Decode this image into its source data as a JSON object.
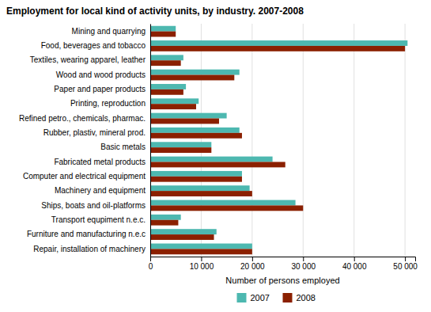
{
  "chart_data": {
    "type": "bar",
    "orientation": "horizontal",
    "title": "Employment for local kind of activity units, by industry. 2007-2008",
    "categories": [
      "Mining and quarrying",
      "Food, beverages and tobacco",
      "Textiles, wearing apparel, leather",
      "Wood and wood products",
      "Paper and paper products",
      "Printing, reproduction",
      "Refined petro., chemicals, pharmac.",
      "Rubber, plastiv, mineral prod.",
      "Basic metals",
      "Fabricated metal products",
      "Computer and electrical equipment",
      "Machinery and equipment",
      "Ships, boats and oil-platforms",
      "Transport equpiment n.e.c.",
      "Furniture and manufacturing n.e.c",
      "Repair, installation of machinery"
    ],
    "series": [
      {
        "name": "2007",
        "color": "#4db8b0",
        "values": [
          5000,
          50500,
          6500,
          17500,
          7000,
          9500,
          15000,
          17500,
          12000,
          24000,
          18000,
          19500,
          28500,
          6000,
          13000,
          20000
        ]
      },
      {
        "name": "2008",
        "color": "#8b2000",
        "values": [
          5000,
          50000,
          6000,
          16500,
          6500,
          9000,
          13500,
          18000,
          12000,
          26500,
          18000,
          20000,
          30000,
          5500,
          12500,
          20000
        ]
      }
    ],
    "xlabel": "Number of persons employed",
    "xlim": [
      0,
      52000
    ],
    "xticks": [
      0,
      {
        "value": 10000,
        "label": "10 000"
      },
      {
        "value": 20000,
        "label": "20 000"
      },
      {
        "value": 30000,
        "label": "30 000"
      },
      {
        "value": 40000,
        "label": "40 000"
      },
      {
        "value": 50000,
        "label": "50 000"
      }
    ],
    "grid": true,
    "legend": "bottom"
  }
}
